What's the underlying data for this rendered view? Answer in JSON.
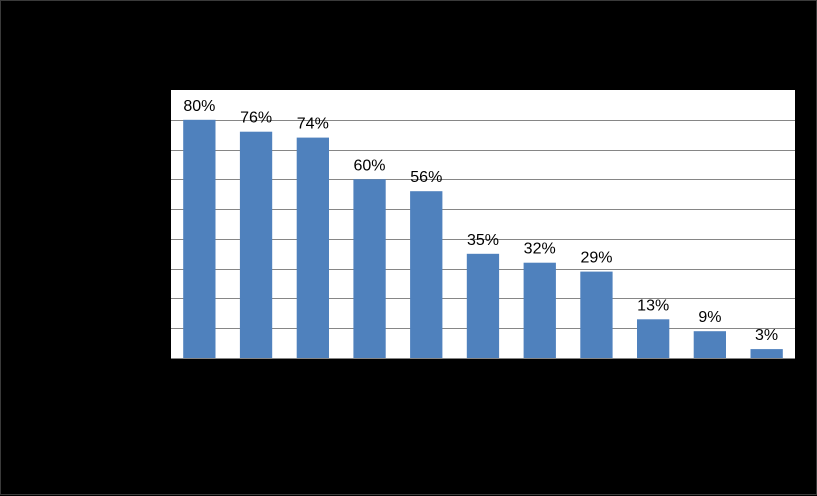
{
  "chart_data": {
    "type": "bar",
    "categories": [
      "",
      "",
      "",
      "",
      "",
      "",
      "",
      "",
      "",
      "",
      ""
    ],
    "values": [
      80,
      76,
      74,
      60,
      56,
      35,
      32,
      29,
      13,
      9,
      3
    ],
    "value_labels": [
      "80%",
      "76%",
      "74%",
      "60%",
      "56%",
      "35%",
      "32%",
      "29%",
      "13%",
      "9%",
      "3%"
    ],
    "unit": "%",
    "ylim": [
      0,
      90
    ],
    "y_gridline_step": 10,
    "grid": true,
    "legend": "none",
    "colors": {
      "bar": "#4F81BD",
      "plot_background": "#FFFFFF",
      "gridline": "#868686",
      "chart_background": "#000000",
      "label_text": "#000000"
    }
  }
}
